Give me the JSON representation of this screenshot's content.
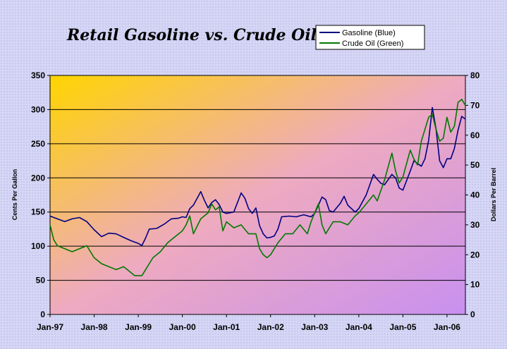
{
  "chart_data": {
    "type": "line",
    "title": "Retail Gasoline vs. Crude Oil",
    "ylabel": "Cents Per Gallon",
    "y2label": "Dollars Per Barrel",
    "xlabel": "",
    "ylim": [
      0,
      350
    ],
    "y2lim": [
      0,
      80
    ],
    "yticks": [
      "0",
      "50",
      "100",
      "150",
      "200",
      "250",
      "300",
      "350"
    ],
    "y2ticks": [
      "0",
      "10",
      "20",
      "30",
      "40",
      "50",
      "60",
      "70",
      "80"
    ],
    "xticks": [
      "Jan-97",
      "Jan-98",
      "Jan-99",
      "Jan-00",
      "Jan-01",
      "Jan-02",
      "Jan-03",
      "Jan-04",
      "Jan-05",
      "Jan-06"
    ],
    "x_range": [
      "1997-01",
      "2006-06"
    ],
    "grid": "horizontal",
    "legend_position": "top-right",
    "series": [
      {
        "name": "Gasoline (Blue)",
        "axis": "left",
        "color": "#000080",
        "points": [
          [
            "1997-01",
            144
          ],
          [
            "1997-03",
            140
          ],
          [
            "1997-05",
            136
          ],
          [
            "1997-07",
            140
          ],
          [
            "1997-09",
            142
          ],
          [
            "1997-11",
            136
          ],
          [
            "1998-01",
            124
          ],
          [
            "1998-03",
            114
          ],
          [
            "1998-05",
            119
          ],
          [
            "1998-07",
            118
          ],
          [
            "1998-09",
            113
          ],
          [
            "1998-11",
            108
          ],
          [
            "1999-01",
            104
          ],
          [
            "1999-02",
            101
          ],
          [
            "1999-03",
            112
          ],
          [
            "1999-04",
            125
          ],
          [
            "1999-06",
            126
          ],
          [
            "1999-08",
            132
          ],
          [
            "1999-10",
            140
          ],
          [
            "1999-12",
            141
          ],
          [
            "2000-01",
            143
          ],
          [
            "2000-02",
            142
          ],
          [
            "2000-03",
            155
          ],
          [
            "2000-04",
            160
          ],
          [
            "2000-06",
            180
          ],
          [
            "2000-07",
            167
          ],
          [
            "2000-08",
            156
          ],
          [
            "2000-09",
            164
          ],
          [
            "2000-10",
            168
          ],
          [
            "2000-11",
            161
          ],
          [
            "2000-12",
            150
          ],
          [
            "2001-01",
            148
          ],
          [
            "2001-03",
            150
          ],
          [
            "2001-05",
            178
          ],
          [
            "2001-06",
            170
          ],
          [
            "2001-07",
            155
          ],
          [
            "2001-08",
            148
          ],
          [
            "2001-09",
            156
          ],
          [
            "2001-10",
            130
          ],
          [
            "2001-11",
            118
          ],
          [
            "2001-12",
            112
          ],
          [
            "2002-01",
            113
          ],
          [
            "2002-02",
            115
          ],
          [
            "2002-03",
            125
          ],
          [
            "2002-04",
            143
          ],
          [
            "2002-06",
            144
          ],
          [
            "2002-08",
            143
          ],
          [
            "2002-10",
            146
          ],
          [
            "2002-12",
            143
          ],
          [
            "2003-01",
            148
          ],
          [
            "2003-03",
            172
          ],
          [
            "2003-04",
            168
          ],
          [
            "2003-05",
            152
          ],
          [
            "2003-06",
            150
          ],
          [
            "2003-08",
            163
          ],
          [
            "2003-09",
            173
          ],
          [
            "2003-10",
            160
          ],
          [
            "2003-12",
            150
          ],
          [
            "2004-01",
            155
          ],
          [
            "2004-03",
            175
          ],
          [
            "2004-05",
            205
          ],
          [
            "2004-06",
            198
          ],
          [
            "2004-07",
            192
          ],
          [
            "2004-08",
            190
          ],
          [
            "2004-10",
            205
          ],
          [
            "2004-11",
            200
          ],
          [
            "2004-12",
            185
          ],
          [
            "2005-01",
            182
          ],
          [
            "2005-03",
            210
          ],
          [
            "2005-04",
            225
          ],
          [
            "2005-06",
            217
          ],
          [
            "2005-07",
            228
          ],
          [
            "2005-08",
            255
          ],
          [
            "2005-09",
            303
          ],
          [
            "2005-10",
            272
          ],
          [
            "2005-11",
            225
          ],
          [
            "2005-12",
            215
          ],
          [
            "2006-01",
            228
          ],
          [
            "2006-02",
            228
          ],
          [
            "2006-03",
            243
          ],
          [
            "2006-04",
            270
          ],
          [
            "2006-05",
            290
          ],
          [
            "2006-06",
            286
          ]
        ]
      },
      {
        "name": "Crude Oil (Green)",
        "axis": "right",
        "color": "#007800",
        "points": [
          [
            "1997-01",
            30
          ],
          [
            "1997-02",
            25
          ],
          [
            "1997-03",
            23
          ],
          [
            "1997-05",
            22
          ],
          [
            "1997-07",
            21
          ],
          [
            "1997-09",
            22
          ],
          [
            "1997-11",
            23
          ],
          [
            "1997-12",
            21
          ],
          [
            "1998-01",
            19
          ],
          [
            "1998-03",
            17
          ],
          [
            "1998-05",
            16
          ],
          [
            "1998-07",
            15
          ],
          [
            "1998-09",
            16
          ],
          [
            "1998-10",
            15
          ],
          [
            "1998-12",
            13
          ],
          [
            "1999-01",
            13
          ],
          [
            "1999-02",
            13
          ],
          [
            "1999-03",
            15
          ],
          [
            "1999-05",
            19
          ],
          [
            "1999-07",
            21
          ],
          [
            "1999-09",
            24
          ],
          [
            "1999-11",
            26
          ],
          [
            "2000-01",
            28
          ],
          [
            "2000-02",
            30
          ],
          [
            "2000-03",
            33
          ],
          [
            "2000-04",
            27
          ],
          [
            "2000-06",
            32
          ],
          [
            "2000-08",
            34
          ],
          [
            "2000-09",
            37
          ],
          [
            "2000-10",
            35
          ],
          [
            "2000-11",
            36
          ],
          [
            "2000-12",
            28
          ],
          [
            "2001-01",
            31
          ],
          [
            "2001-03",
            29
          ],
          [
            "2001-05",
            30
          ],
          [
            "2001-07",
            27
          ],
          [
            "2001-09",
            27
          ],
          [
            "2001-10",
            22
          ],
          [
            "2001-11",
            20
          ],
          [
            "2001-12",
            19
          ],
          [
            "2002-01",
            20
          ],
          [
            "2002-03",
            24
          ],
          [
            "2002-05",
            27
          ],
          [
            "2002-07",
            27
          ],
          [
            "2002-09",
            30
          ],
          [
            "2002-11",
            27
          ],
          [
            "2002-12",
            31
          ],
          [
            "2003-01",
            34
          ],
          [
            "2003-02",
            37
          ],
          [
            "2003-03",
            30
          ],
          [
            "2003-04",
            27
          ],
          [
            "2003-06",
            31
          ],
          [
            "2003-08",
            31
          ],
          [
            "2003-10",
            30
          ],
          [
            "2003-12",
            33
          ],
          [
            "2004-01",
            34
          ],
          [
            "2004-03",
            37
          ],
          [
            "2004-05",
            40
          ],
          [
            "2004-06",
            38
          ],
          [
            "2004-08",
            45
          ],
          [
            "2004-10",
            54
          ],
          [
            "2004-11",
            48
          ],
          [
            "2004-12",
            44
          ],
          [
            "2005-01",
            46
          ],
          [
            "2005-03",
            55
          ],
          [
            "2005-04",
            52
          ],
          [
            "2005-05",
            50
          ],
          [
            "2005-06",
            58
          ],
          [
            "2005-08",
            66
          ],
          [
            "2005-09",
            67
          ],
          [
            "2005-10",
            62
          ],
          [
            "2005-11",
            58
          ],
          [
            "2005-12",
            59
          ],
          [
            "2006-01",
            66
          ],
          [
            "2006-02",
            61
          ],
          [
            "2006-03",
            63
          ],
          [
            "2006-04",
            71
          ],
          [
            "2006-05",
            72
          ],
          [
            "2006-06",
            70
          ]
        ]
      }
    ]
  }
}
